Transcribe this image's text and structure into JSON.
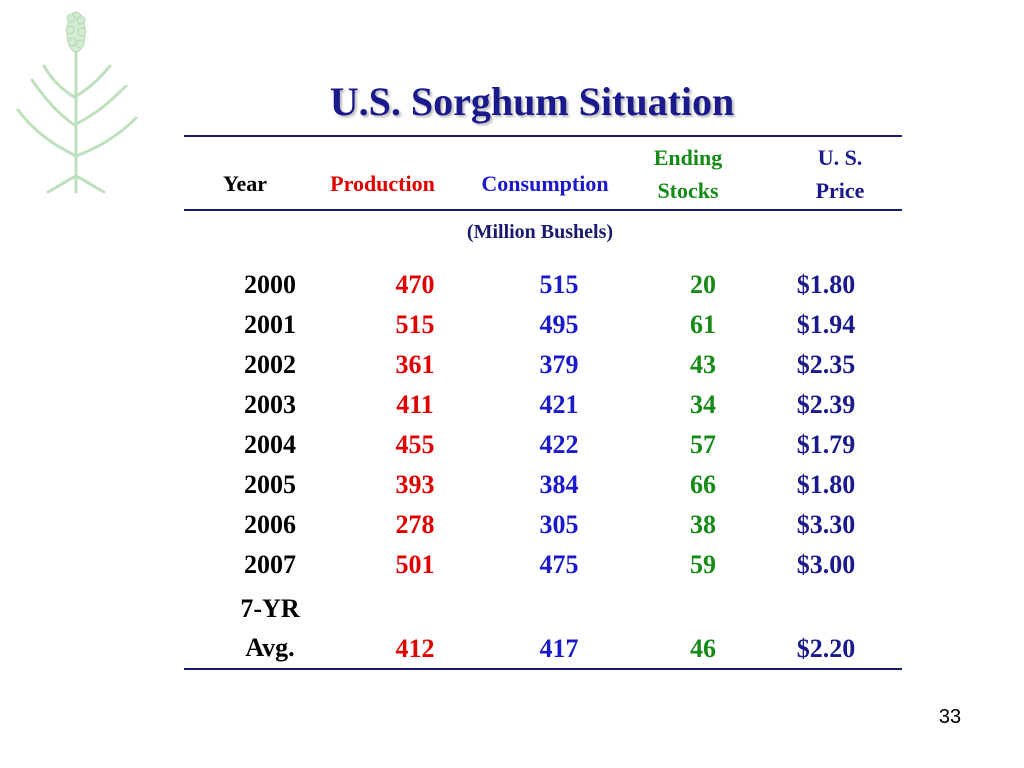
{
  "slide": {
    "title": "U.S. Sorghum Situation",
    "page_number": "33",
    "decoration_icon": "sorghum-plant-icon"
  },
  "table": {
    "headers": {
      "year": "Year",
      "production": "Production",
      "consumption": "Consumption",
      "ending_stocks_line1": "Ending",
      "ending_stocks_line2": "Stocks",
      "price_line1": "U. S.",
      "price_line2": "Price"
    },
    "units": "(Million Bushels)",
    "rows": [
      {
        "year": "2000",
        "production": "470",
        "consumption": "515",
        "ending_stocks": "20",
        "price": "$1.80"
      },
      {
        "year": "2001",
        "production": "515",
        "consumption": "495",
        "ending_stocks": "61",
        "price": "$1.94"
      },
      {
        "year": "2002",
        "production": "361",
        "consumption": "379",
        "ending_stocks": "43",
        "price": "$2.35"
      },
      {
        "year": "2003",
        "production": "411",
        "consumption": "421",
        "ending_stocks": "34",
        "price": "$2.39"
      },
      {
        "year": "2004",
        "production": "455",
        "consumption": "422",
        "ending_stocks": "57",
        "price": "$1.79"
      },
      {
        "year": "2005",
        "production": "393",
        "consumption": "384",
        "ending_stocks": "66",
        "price": "$1.80"
      },
      {
        "year": "2006",
        "production": "278",
        "consumption": "305",
        "ending_stocks": "38",
        "price": "$3.30"
      },
      {
        "year": "2007",
        "production": "501",
        "consumption": "475",
        "ending_stocks": "59",
        "price": "$3.00"
      }
    ],
    "average": {
      "year_line1": "7-YR",
      "year_line2": "Avg.",
      "production": "412",
      "consumption": "417",
      "ending_stocks": "46",
      "price": "$2.20"
    }
  },
  "colors": {
    "title": "#1a1a8c",
    "production": "#e00000",
    "consumption": "#1a1acc",
    "ending_stocks": "#168a16",
    "price": "#1a1a8c",
    "plant": "#c8e6c8"
  }
}
